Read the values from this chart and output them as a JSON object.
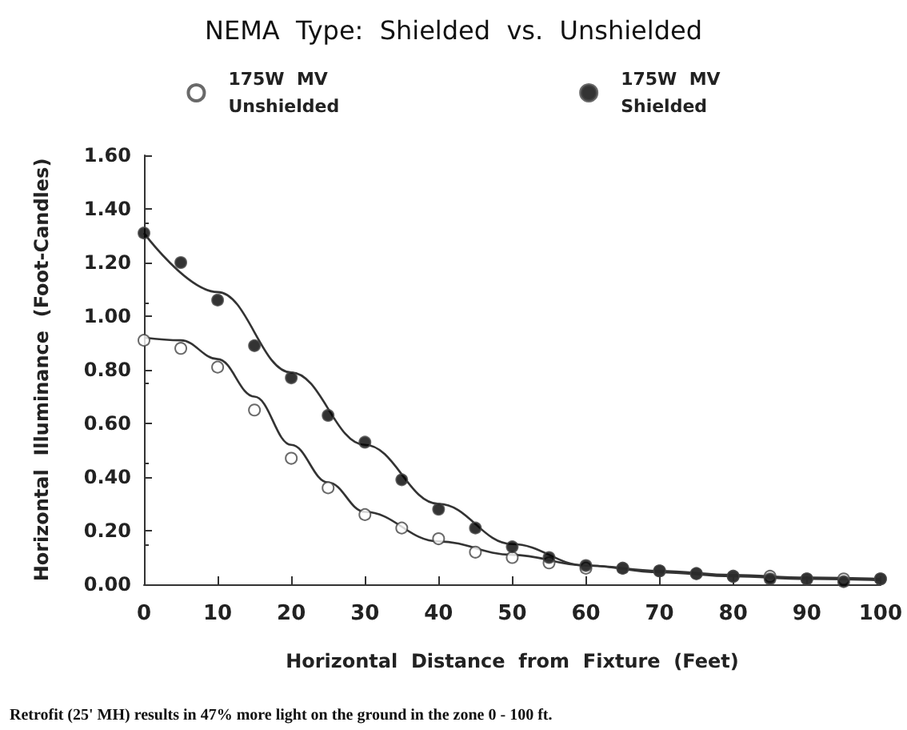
{
  "chart_data": {
    "type": "scatter",
    "title": "NEMA  Type:  Shielded  vs.  Unshielded",
    "xlabel": "Horizontal  Distance  from  Fixture  (Feet)",
    "ylabel": "Horizontal  Illuminance  (Foot-Candles)",
    "annotations": [
      "Retrofit (25' MH) results in 47% more light on the ground in the zone 0 - 100 ft."
    ],
    "x": [
      0,
      5,
      10,
      15,
      20,
      25,
      30,
      35,
      40,
      45,
      50,
      55,
      60,
      65,
      70,
      75,
      80,
      85,
      90,
      95,
      100
    ],
    "series": [
      {
        "name": "175W  MV\nUnshielded",
        "color": "#ffffff",
        "values": [
          0.91,
          0.88,
          0.81,
          0.65,
          0.47,
          0.36,
          0.26,
          0.21,
          0.17,
          0.12,
          0.1,
          0.08,
          0.06,
          0.06,
          0.05,
          0.04,
          0.03,
          0.03,
          0.02,
          0.02,
          0.02
        ]
      },
      {
        "name": "175W  MV\nShielded",
        "color": "#000000",
        "values": [
          1.31,
          1.2,
          1.06,
          0.89,
          0.77,
          0.63,
          0.53,
          0.39,
          0.28,
          0.21,
          0.14,
          0.1,
          0.07,
          0.06,
          0.05,
          0.04,
          0.03,
          0.02,
          0.02,
          0.01,
          0.02
        ]
      },
      {
        "type": "line",
        "color": "#333333",
        "marker": "none",
        "x": [
          0,
          5,
          10,
          15,
          20,
          25,
          30,
          40,
          50,
          60,
          70,
          80,
          90,
          100
        ],
        "values": [
          0.92,
          0.91,
          0.84,
          0.7,
          0.52,
          0.38,
          0.27,
          0.16,
          0.11,
          0.07,
          0.05,
          0.035,
          0.025,
          0.02
        ]
      },
      {
        "type": "line",
        "color": "#333333",
        "marker": "none",
        "x": [
          0,
          10,
          20,
          30,
          40,
          50,
          60,
          70,
          80,
          90,
          100
        ],
        "values": [
          1.31,
          1.09,
          0.79,
          0.52,
          0.3,
          0.15,
          0.07,
          0.045,
          0.03,
          0.02,
          0.015
        ]
      }
    ],
    "marker": "circle",
    "legend": "top",
    "grid": false,
    "xlim": [
      0,
      100
    ],
    "xticks": [
      0,
      10,
      20,
      30,
      40,
      50,
      60,
      70,
      80,
      90,
      100
    ],
    "ylim": [
      0,
      1.6
    ],
    "yticks": [
      {
        "value": 0,
        "label": "0.00"
      },
      {
        "value": 0.2,
        "label": "0.20"
      },
      {
        "value": 0.4,
        "label": "0.40"
      },
      {
        "value": 0.6,
        "label": "0.60"
      },
      {
        "value": 0.8,
        "label": "0.80"
      },
      {
        "value": 1.0,
        "label": "1.00"
      },
      {
        "value": 1.2,
        "label": "1.20"
      },
      {
        "value": 1.4,
        "label": "1.40"
      },
      {
        "value": 1.6,
        "label": "1.60"
      }
    ]
  }
}
